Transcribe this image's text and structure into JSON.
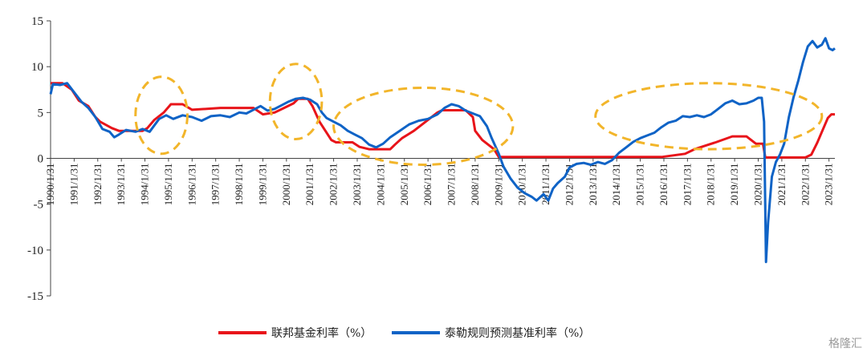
{
  "chart_data": {
    "type": "line",
    "ylim": [
      -15,
      15
    ],
    "yticks": [
      -15,
      -10,
      -5,
      0,
      5,
      10,
      15
    ],
    "x_range": [
      1990.0,
      2023.25
    ],
    "x_tick_labels": [
      "1990/1/31",
      "1991/1/31",
      "1992/1/31",
      "1993/1/31",
      "1994/1/31",
      "1995/1/31",
      "1996/1/31",
      "1997/1/31",
      "1998/1/31",
      "1999/1/31",
      "2000/1/31",
      "2001/1/31",
      "2002/1/31",
      "2003/1/31",
      "2004/1/31",
      "2005/1/31",
      "2006/1/31",
      "2007/1/31",
      "2008/1/31",
      "2009/1/31",
      "2010/1/31",
      "2011/1/31",
      "2012/1/31",
      "2013/1/31",
      "2014/1/31",
      "2015/1/31",
      "2016/1/31",
      "2017/1/31",
      "2018/1/31",
      "2019/1/31",
      "2020/1/31",
      "2021/1/31",
      "2022/1/31",
      "2023/1/31"
    ],
    "series": [
      {
        "name": "联邦基金利率（%）",
        "color": "#e8141a",
        "points": [
          [
            1990.0,
            8.2
          ],
          [
            1990.5,
            8.2
          ],
          [
            1990.9,
            7.5
          ],
          [
            1991.2,
            6.3
          ],
          [
            1991.6,
            5.7
          ],
          [
            1991.9,
            4.5
          ],
          [
            1992.1,
            4.0
          ],
          [
            1992.6,
            3.3
          ],
          [
            1992.9,
            3.0
          ],
          [
            1993.9,
            3.0
          ],
          [
            1994.1,
            3.3
          ],
          [
            1994.4,
            4.2
          ],
          [
            1994.8,
            5.0
          ],
          [
            1995.1,
            5.9
          ],
          [
            1995.6,
            5.9
          ],
          [
            1996.0,
            5.3
          ],
          [
            1997.2,
            5.5
          ],
          [
            1998.6,
            5.5
          ],
          [
            1999.0,
            4.8
          ],
          [
            1999.5,
            5.0
          ],
          [
            1999.9,
            5.5
          ],
          [
            2000.3,
            6.0
          ],
          [
            2000.5,
            6.5
          ],
          [
            2000.9,
            6.5
          ],
          [
            2001.1,
            5.7
          ],
          [
            2001.4,
            4.0
          ],
          [
            2001.9,
            2.0
          ],
          [
            2002.1,
            1.75
          ],
          [
            2002.8,
            1.75
          ],
          [
            2003.1,
            1.25
          ],
          [
            2003.5,
            1.0
          ],
          [
            2004.4,
            1.0
          ],
          [
            2004.6,
            1.5
          ],
          [
            2004.9,
            2.2
          ],
          [
            2005.4,
            3.0
          ],
          [
            2005.9,
            4.0
          ],
          [
            2006.4,
            5.0
          ],
          [
            2006.6,
            5.25
          ],
          [
            2007.6,
            5.25
          ],
          [
            2007.9,
            4.5
          ],
          [
            2008.0,
            3.0
          ],
          [
            2008.3,
            2.0
          ],
          [
            2008.8,
            1.0
          ],
          [
            2009.0,
            0.15
          ],
          [
            2015.9,
            0.15
          ],
          [
            2016.9,
            0.5
          ],
          [
            2017.3,
            1.0
          ],
          [
            2017.9,
            1.5
          ],
          [
            2018.2,
            1.75
          ],
          [
            2018.9,
            2.4
          ],
          [
            2019.5,
            2.4
          ],
          [
            2019.9,
            1.6
          ],
          [
            2020.2,
            1.6
          ],
          [
            2020.3,
            0.1
          ],
          [
            2022.0,
            0.1
          ],
          [
            2022.25,
            0.4
          ],
          [
            2022.5,
            1.7
          ],
          [
            2022.75,
            3.2
          ],
          [
            2022.95,
            4.4
          ],
          [
            2023.1,
            4.8
          ],
          [
            2023.25,
            4.8
          ]
        ]
      },
      {
        "name": "泰勒规则预测基准利率（%）",
        "color": "#0f63c6",
        "points": [
          [
            1990.0,
            7.0
          ],
          [
            1990.1,
            8.1
          ],
          [
            1990.4,
            8.0
          ],
          [
            1990.7,
            8.2
          ],
          [
            1991.0,
            7.2
          ],
          [
            1991.3,
            6.2
          ],
          [
            1991.6,
            5.5
          ],
          [
            1991.9,
            4.5
          ],
          [
            1992.2,
            3.2
          ],
          [
            1992.5,
            2.9
          ],
          [
            1992.7,
            2.3
          ],
          [
            1992.9,
            2.6
          ],
          [
            1993.2,
            3.1
          ],
          [
            1993.6,
            2.9
          ],
          [
            1993.9,
            3.2
          ],
          [
            1994.2,
            2.9
          ],
          [
            1994.4,
            3.6
          ],
          [
            1994.6,
            4.3
          ],
          [
            1994.9,
            4.7
          ],
          [
            1995.2,
            4.3
          ],
          [
            1995.6,
            4.7
          ],
          [
            1996.0,
            4.5
          ],
          [
            1996.4,
            4.1
          ],
          [
            1996.8,
            4.6
          ],
          [
            1997.2,
            4.7
          ],
          [
            1997.6,
            4.5
          ],
          [
            1998.0,
            5.0
          ],
          [
            1998.3,
            4.9
          ],
          [
            1998.6,
            5.3
          ],
          [
            1998.9,
            5.7
          ],
          [
            1999.2,
            5.2
          ],
          [
            1999.5,
            5.4
          ],
          [
            1999.8,
            5.8
          ],
          [
            2000.1,
            6.2
          ],
          [
            2000.4,
            6.5
          ],
          [
            2000.7,
            6.6
          ],
          [
            2001.0,
            6.4
          ],
          [
            2001.3,
            5.9
          ],
          [
            2001.5,
            5.0
          ],
          [
            2001.7,
            4.4
          ],
          [
            2002.0,
            4.0
          ],
          [
            2002.3,
            3.6
          ],
          [
            2002.6,
            3.0
          ],
          [
            2002.9,
            2.6
          ],
          [
            2003.2,
            2.2
          ],
          [
            2003.5,
            1.5
          ],
          [
            2003.8,
            1.2
          ],
          [
            2004.1,
            1.6
          ],
          [
            2004.4,
            2.3
          ],
          [
            2004.8,
            3.0
          ],
          [
            2005.2,
            3.7
          ],
          [
            2005.6,
            4.1
          ],
          [
            2006.0,
            4.3
          ],
          [
            2006.4,
            4.8
          ],
          [
            2006.7,
            5.5
          ],
          [
            2007.0,
            5.9
          ],
          [
            2007.3,
            5.7
          ],
          [
            2007.6,
            5.2
          ],
          [
            2007.9,
            4.9
          ],
          [
            2008.2,
            4.6
          ],
          [
            2008.5,
            3.5
          ],
          [
            2008.7,
            2.2
          ],
          [
            2009.0,
            0.5
          ],
          [
            2009.2,
            -0.9
          ],
          [
            2009.5,
            -2.2
          ],
          [
            2009.8,
            -3.2
          ],
          [
            2010.1,
            -3.8
          ],
          [
            2010.4,
            -4.2
          ],
          [
            2010.6,
            -4.6
          ],
          [
            2010.9,
            -3.9
          ],
          [
            2011.1,
            -4.6
          ],
          [
            2011.3,
            -3.3
          ],
          [
            2011.5,
            -2.7
          ],
          [
            2011.8,
            -2.0
          ],
          [
            2012.0,
            -1.0
          ],
          [
            2012.3,
            -0.6
          ],
          [
            2012.6,
            -0.5
          ],
          [
            2012.9,
            -0.7
          ],
          [
            2013.2,
            -0.4
          ],
          [
            2013.5,
            -0.6
          ],
          [
            2013.8,
            -0.2
          ],
          [
            2014.1,
            0.6
          ],
          [
            2014.4,
            1.2
          ],
          [
            2014.7,
            1.8
          ],
          [
            2015.0,
            2.2
          ],
          [
            2015.3,
            2.5
          ],
          [
            2015.6,
            2.8
          ],
          [
            2015.9,
            3.4
          ],
          [
            2016.2,
            3.9
          ],
          [
            2016.5,
            4.1
          ],
          [
            2016.8,
            4.6
          ],
          [
            2017.1,
            4.5
          ],
          [
            2017.4,
            4.7
          ],
          [
            2017.7,
            4.5
          ],
          [
            2018.0,
            4.8
          ],
          [
            2018.3,
            5.4
          ],
          [
            2018.6,
            6.0
          ],
          [
            2018.9,
            6.3
          ],
          [
            2019.2,
            5.9
          ],
          [
            2019.5,
            6.0
          ],
          [
            2019.8,
            6.3
          ],
          [
            2020.0,
            6.6
          ],
          [
            2020.15,
            6.6
          ],
          [
            2020.25,
            4.0
          ],
          [
            2020.33,
            -11.3
          ],
          [
            2020.42,
            -7.0
          ],
          [
            2020.58,
            -2.0
          ],
          [
            2020.75,
            -0.4
          ],
          [
            2020.92,
            0.4
          ],
          [
            2021.1,
            1.6
          ],
          [
            2021.3,
            4.5
          ],
          [
            2021.5,
            6.7
          ],
          [
            2021.7,
            8.5
          ],
          [
            2021.9,
            10.5
          ],
          [
            2022.1,
            12.2
          ],
          [
            2022.3,
            12.8
          ],
          [
            2022.5,
            12.1
          ],
          [
            2022.7,
            12.4
          ],
          [
            2022.85,
            13.1
          ],
          [
            2023.0,
            12.0
          ],
          [
            2023.15,
            11.8
          ],
          [
            2023.25,
            12.0
          ]
        ]
      }
    ],
    "highlight_ellipses": [
      {
        "x_center": 1994.7,
        "y_center": 4.7,
        "x_radius": 1.1,
        "y_radius": 4.2
      },
      {
        "x_center": 2000.4,
        "y_center": 6.2,
        "x_radius": 1.1,
        "y_radius": 4.1
      },
      {
        "x_center": 2005.8,
        "y_center": 3.5,
        "x_radius": 3.8,
        "y_radius": 4.2
      },
      {
        "x_center": 2017.9,
        "y_center": 4.6,
        "x_radius": 4.8,
        "y_radius": 3.6
      }
    ],
    "highlight_color": "#f2b52a"
  },
  "watermark": "格隆汇"
}
